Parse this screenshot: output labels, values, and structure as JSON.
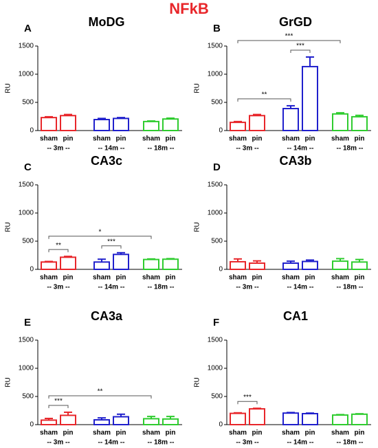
{
  "title": "NFkB",
  "chart_data": [
    {
      "type": "bar",
      "label": "A",
      "title": "MoDG",
      "ylabel": "RU",
      "ylim": [
        0,
        1500
      ],
      "yticks": [
        0,
        500,
        1000,
        1500
      ],
      "categories": [
        "sham",
        "pin",
        "sham",
        "pin",
        "sham",
        "pin"
      ],
      "groups": [
        "-- 3m --",
        "-- 14m --",
        "-- 18m --"
      ],
      "colors": [
        "#e8262a",
        "#e8262a",
        "#1f1fcc",
        "#1f1fcc",
        "#2ecc2e",
        "#2ecc2e"
      ],
      "values": [
        230,
        265,
        195,
        215,
        160,
        205
      ],
      "errors": [
        15,
        20,
        20,
        15,
        10,
        15
      ],
      "annotations": []
    },
    {
      "type": "bar",
      "label": "B",
      "title": "GrGD",
      "ylabel": "RU",
      "ylim": [
        0,
        1500
      ],
      "yticks": [
        0,
        500,
        1000,
        1500
      ],
      "categories": [
        "sham",
        "pin",
        "sham",
        "pin",
        "sham",
        "pin"
      ],
      "groups": [
        "-- 3m --",
        "-- 14m --",
        "-- 18m --"
      ],
      "colors": [
        "#e8262a",
        "#e8262a",
        "#1f1fcc",
        "#1f1fcc",
        "#2ecc2e",
        "#2ecc2e"
      ],
      "values": [
        145,
        265,
        390,
        1135,
        295,
        245
      ],
      "errors": [
        15,
        20,
        50,
        170,
        20,
        25
      ],
      "annotations": [
        {
          "text": "**",
          "between": [
            0,
            2
          ]
        },
        {
          "text": "***",
          "between": [
            2,
            3
          ]
        },
        {
          "text": "***",
          "between": [
            0,
            4
          ]
        }
      ]
    },
    {
      "type": "bar",
      "label": "C",
      "title": "CA3c",
      "ylabel": "RU",
      "ylim": [
        0,
        1500
      ],
      "yticks": [
        0,
        500,
        1000,
        1500
      ],
      "categories": [
        "sham",
        "pin",
        "sham",
        "pin",
        "sham",
        "pin"
      ],
      "groups": [
        "-- 3m --",
        "-- 14m --",
        "-- 18m --"
      ],
      "colors": [
        "#e8262a",
        "#e8262a",
        "#1f1fcc",
        "#1f1fcc",
        "#2ecc2e",
        "#2ecc2e"
      ],
      "values": [
        130,
        215,
        130,
        265,
        175,
        180
      ],
      "errors": [
        10,
        15,
        50,
        30,
        10,
        10
      ],
      "annotations": [
        {
          "text": "**",
          "between": [
            0,
            1
          ]
        },
        {
          "text": "***",
          "between": [
            2,
            3
          ]
        },
        {
          "text": "*",
          "between": [
            0,
            4
          ]
        }
      ]
    },
    {
      "type": "bar",
      "label": "D",
      "title": "CA3b",
      "ylabel": "RU",
      "ylim": [
        0,
        1500
      ],
      "yticks": [
        0,
        500,
        1000,
        1500
      ],
      "categories": [
        "sham",
        "pin",
        "sham",
        "pin",
        "sham",
        "pin"
      ],
      "groups": [
        "-- 3m --",
        "-- 14m --",
        "-- 18m --"
      ],
      "colors": [
        "#e8262a",
        "#e8262a",
        "#1f1fcc",
        "#1f1fcc",
        "#2ecc2e",
        "#2ecc2e"
      ],
      "values": [
        135,
        110,
        110,
        140,
        145,
        130
      ],
      "errors": [
        50,
        40,
        35,
        25,
        45,
        45
      ],
      "annotations": []
    },
    {
      "type": "bar",
      "label": "E",
      "title": "CA3a",
      "ylabel": "RU",
      "ylim": [
        0,
        1500
      ],
      "yticks": [
        0,
        500,
        1000,
        1500
      ],
      "categories": [
        "sham",
        "pin",
        "sham",
        "pin",
        "sham",
        "pin"
      ],
      "groups": [
        "-- 3m --",
        "-- 14m --",
        "-- 18m --"
      ],
      "colors": [
        "#e8262a",
        "#e8262a",
        "#1f1fcc",
        "#1f1fcc",
        "#2ecc2e",
        "#2ecc2e"
      ],
      "values": [
        80,
        165,
        85,
        140,
        105,
        100
      ],
      "errors": [
        30,
        55,
        35,
        45,
        40,
        45
      ],
      "annotations": [
        {
          "text": "***",
          "between": [
            0,
            1
          ]
        },
        {
          "text": "**",
          "between": [
            0,
            4
          ]
        }
      ]
    },
    {
      "type": "bar",
      "label": "F",
      "title": "CA1",
      "ylabel": "RU",
      "ylim": [
        0,
        1500
      ],
      "yticks": [
        0,
        500,
        1000,
        1500
      ],
      "categories": [
        "sham",
        "pin",
        "sham",
        "pin",
        "sham",
        "pin"
      ],
      "groups": [
        "-- 3m --",
        "-- 14m --",
        "-- 18m --"
      ],
      "colors": [
        "#e8262a",
        "#e8262a",
        "#1f1fcc",
        "#1f1fcc",
        "#2ecc2e",
        "#2ecc2e"
      ],
      "values": [
        200,
        280,
        205,
        195,
        170,
        185
      ],
      "errors": [
        10,
        10,
        10,
        10,
        8,
        8
      ],
      "annotations": [
        {
          "text": "***",
          "between": [
            0,
            1
          ]
        }
      ]
    }
  ]
}
